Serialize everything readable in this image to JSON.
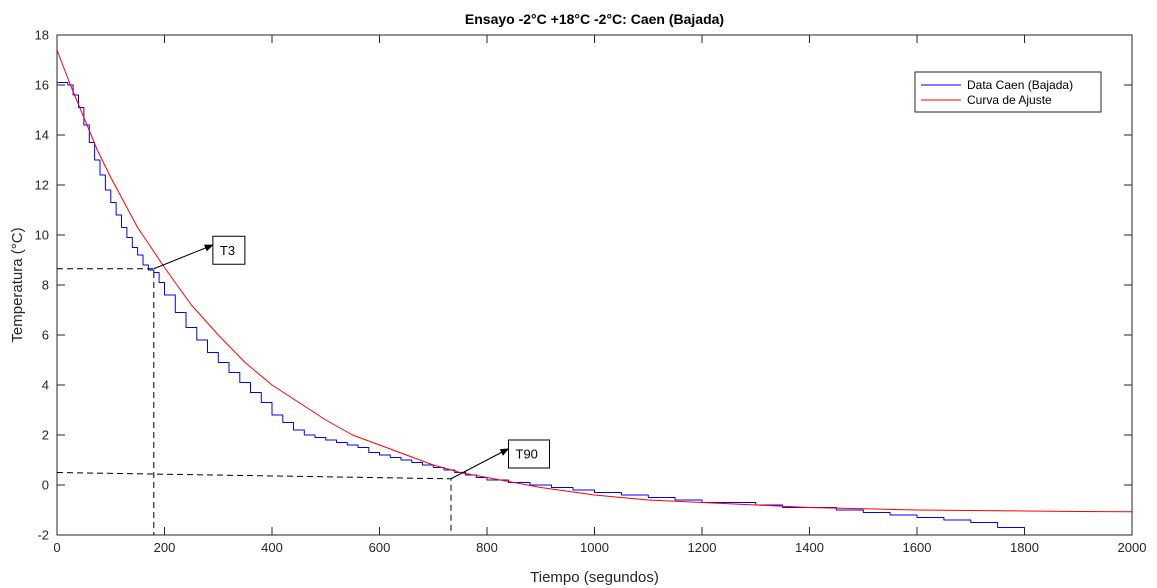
{
  "chart_data": {
    "type": "line",
    "title": "Ensayo -2°C +18°C -2°C: Caen (Bajada)",
    "xlabel": "Tiempo (segundos)",
    "ylabel": "Temperatura (°C)",
    "xlim": [
      0,
      2000
    ],
    "ylim": [
      -2,
      18
    ],
    "xticks": [
      0,
      200,
      400,
      600,
      800,
      1000,
      1200,
      1400,
      1600,
      1800,
      2000
    ],
    "yticks": [
      -2,
      0,
      2,
      4,
      6,
      8,
      10,
      12,
      14,
      16,
      18
    ],
    "grid": false,
    "legend_position": "top-right",
    "series": [
      {
        "name": "Data Caen (Bajada)",
        "color": "#0000ff",
        "style": "step",
        "x": [
          0,
          10,
          20,
          30,
          40,
          50,
          60,
          70,
          80,
          90,
          100,
          110,
          120,
          130,
          140,
          150,
          160,
          170,
          180,
          190,
          200,
          220,
          240,
          260,
          280,
          300,
          320,
          340,
          360,
          380,
          400,
          420,
          440,
          460,
          480,
          500,
          520,
          540,
          560,
          580,
          600,
          620,
          640,
          660,
          680,
          700,
          720,
          740,
          760,
          780,
          800,
          840,
          880,
          920,
          960,
          1000,
          1050,
          1100,
          1150,
          1200,
          1250,
          1300,
          1350,
          1400,
          1450,
          1500,
          1550,
          1600,
          1650,
          1700,
          1750,
          1800
        ],
        "y": [
          16.1,
          16.1,
          16.0,
          15.6,
          15.1,
          14.4,
          13.7,
          13.0,
          12.4,
          11.8,
          11.3,
          10.8,
          10.3,
          9.9,
          9.5,
          9.2,
          8.8,
          8.6,
          8.5,
          8.1,
          7.6,
          6.9,
          6.3,
          5.8,
          5.3,
          4.9,
          4.5,
          4.1,
          3.7,
          3.3,
          2.8,
          2.5,
          2.2,
          2.0,
          1.9,
          1.8,
          1.7,
          1.6,
          1.5,
          1.3,
          1.2,
          1.1,
          1.0,
          0.9,
          0.8,
          0.7,
          0.6,
          0.5,
          0.4,
          0.3,
          0.2,
          0.1,
          0.0,
          -0.1,
          -0.2,
          -0.3,
          -0.4,
          -0.5,
          -0.6,
          -0.7,
          -0.7,
          -0.8,
          -0.9,
          -0.9,
          -1.0,
          -1.1,
          -1.2,
          -1.3,
          -1.4,
          -1.5,
          -1.7,
          -1.8
        ]
      },
      {
        "name": "Curva de Ajuste",
        "color": "#ff0000",
        "style": "smooth",
        "x": [
          0,
          25,
          50,
          75,
          100,
          125,
          150,
          175,
          200,
          250,
          300,
          350,
          400,
          450,
          500,
          550,
          600,
          650,
          700,
          750,
          800,
          900,
          1000,
          1100,
          1200,
          1300,
          1400,
          1500,
          1600,
          1700,
          1800,
          1900,
          2000
        ],
        "y": [
          17.4,
          16.0,
          14.7,
          13.4,
          12.3,
          11.3,
          10.3,
          9.5,
          8.7,
          7.2,
          6.0,
          4.9,
          4.0,
          3.3,
          2.6,
          2.0,
          1.6,
          1.2,
          0.8,
          0.5,
          0.3,
          -0.1,
          -0.4,
          -0.6,
          -0.7,
          -0.8,
          -0.9,
          -0.95,
          -1.0,
          -1.02,
          -1.04,
          -1.06,
          -1.07
        ]
      }
    ],
    "guides": [
      {
        "points": [
          [
            0,
            8.65
          ],
          [
            180,
            8.65
          ],
          [
            180,
            -2
          ]
        ]
      },
      {
        "points": [
          [
            0,
            0.5
          ],
          [
            733,
            0.25
          ],
          [
            733,
            -2
          ]
        ]
      }
    ],
    "annotations": [
      {
        "label": "T3",
        "from": [
          180,
          8.65
        ],
        "to": [
          290,
          9.6
        ],
        "box_at": [
          290,
          9.95
        ]
      },
      {
        "label": "T90",
        "from": [
          733,
          0.25
        ],
        "to": [
          840,
          1.45
        ],
        "box_at": [
          840,
          1.8
        ]
      }
    ]
  }
}
